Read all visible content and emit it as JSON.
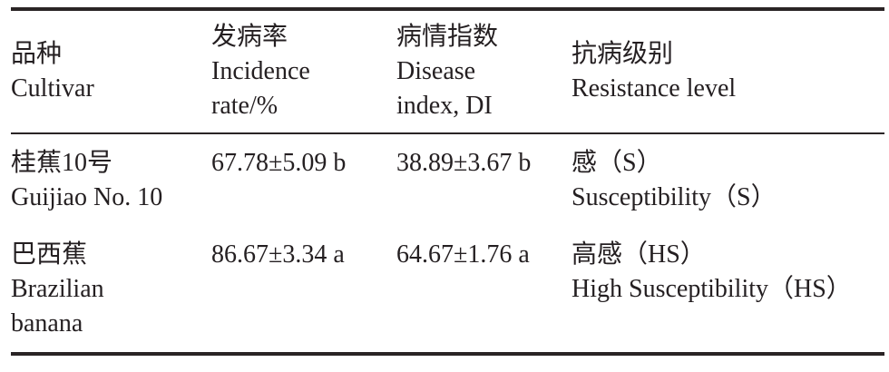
{
  "colors": {
    "text": "#241f21",
    "rule": "#2a2425",
    "background": "#ffffff"
  },
  "table": {
    "columns": [
      {
        "id": "cultivar",
        "label": "品种\nCultivar"
      },
      {
        "id": "incidence",
        "label": "发病率\nIncidence\nrate/%"
      },
      {
        "id": "disease_index",
        "label": "病情指数\nDisease\nindex, DI"
      },
      {
        "id": "resistance",
        "label": "抗病级别\nResistance level"
      }
    ],
    "rows": [
      {
        "cultivar": "桂蕉10号\nGuijiao No. 10",
        "incidence": "67.78±5.09 b",
        "disease_index": "38.89±3.67 b",
        "resistance": "感（S）\nSusceptibility（S）"
      },
      {
        "cultivar": "巴西蕉\nBrazilian\nbanana",
        "incidence": "86.67±3.34 a",
        "disease_index": "64.67±1.76 a",
        "resistance": "高感（HS）\nHigh Susceptibility（HS）"
      }
    ]
  }
}
